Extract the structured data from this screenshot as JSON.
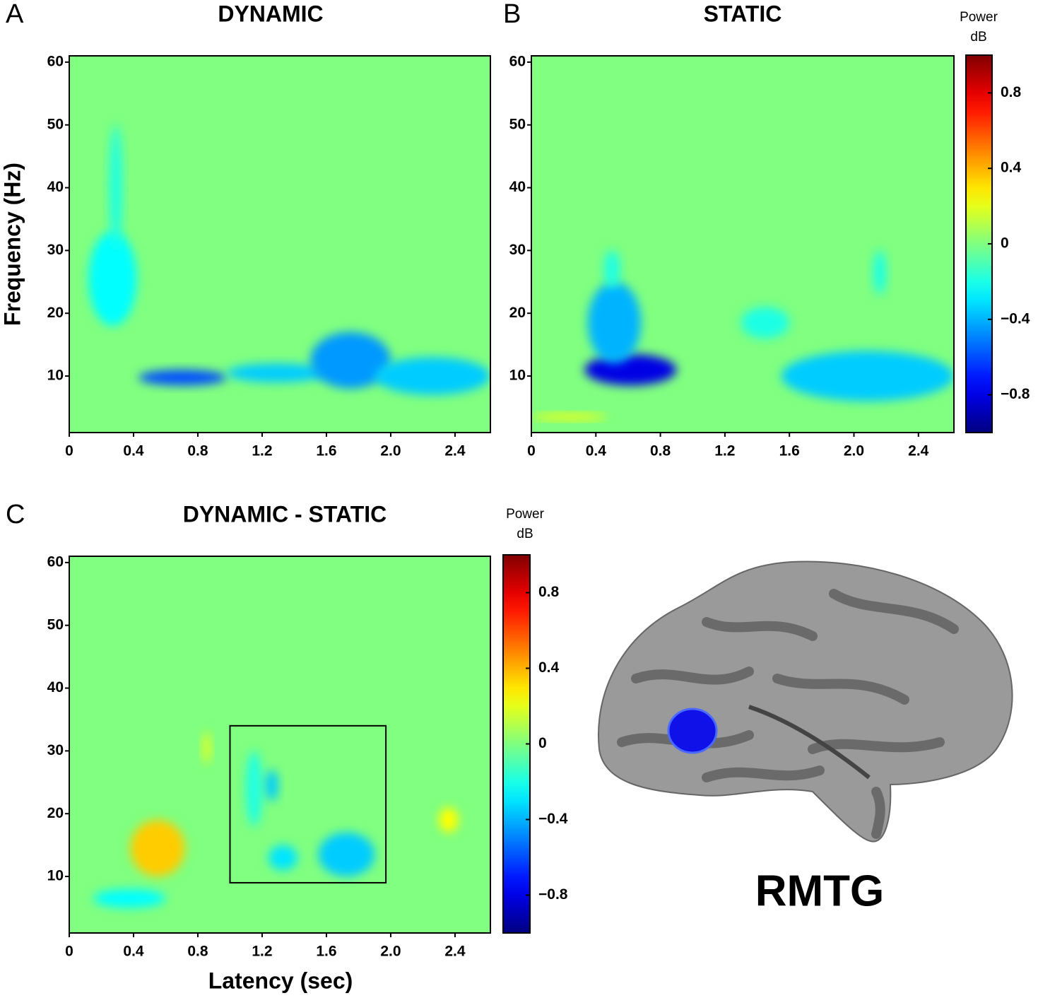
{
  "chart_data": [
    {
      "type": "heatmap",
      "panel": "A",
      "title": "DYNAMIC",
      "y_label": "Frequency (Hz)",
      "xlim": [
        0,
        2.62
      ],
      "ylim": [
        1,
        61
      ],
      "clim": [
        -1,
        1
      ],
      "colormap": "jet",
      "xticks": [
        0,
        0.4,
        0.8,
        1.2,
        1.6,
        {
          "value": 2,
          "label": "2.0"
        },
        2.4
      ],
      "yticks": [
        10,
        20,
        30,
        40,
        50,
        60
      ],
      "blobs": [
        {
          "x": [
            0.43,
            0.98
          ],
          "y": [
            8.5,
            11
          ],
          "value": -0.6
        },
        {
          "x": [
            0.98,
            1.6
          ],
          "y": [
            9,
            12
          ],
          "value": -0.35
        },
        {
          "x": [
            1.5,
            2.0
          ],
          "y": [
            8,
            17
          ],
          "value": -0.45
        },
        {
          "x": [
            1.9,
            2.62
          ],
          "y": [
            7,
            13
          ],
          "value": -0.35
        },
        {
          "x": [
            0.12,
            0.42
          ],
          "y": [
            18,
            33
          ],
          "value": -0.25
        },
        {
          "x": [
            0.25,
            0.33
          ],
          "y": [
            30,
            50
          ],
          "value": -0.2
        }
      ]
    },
    {
      "type": "heatmap",
      "panel": "B",
      "title": "STATIC",
      "colorbar_label": [
        "Power",
        "dB"
      ],
      "xlim": [
        0,
        2.62
      ],
      "ylim": [
        1,
        61
      ],
      "clim": [
        -1,
        1
      ],
      "colormap": "jet",
      "xticks": [
        0,
        0.4,
        0.8,
        1.2,
        1.6,
        {
          "value": 2,
          "label": "2.0"
        },
        2.4
      ],
      "yticks": [
        10,
        20,
        30,
        40,
        50,
        60
      ],
      "cticks": [
        0.8,
        0.4,
        0,
        {
          "value": -0.4,
          "label": "−0.4"
        },
        {
          "value": -0.8,
          "label": "−0.8"
        }
      ],
      "blobs": [
        {
          "x": [
            0.33,
            0.9
          ],
          "y": [
            8.5,
            13.5
          ],
          "value": -0.8
        },
        {
          "x": [
            0.35,
            0.68
          ],
          "y": [
            12,
            25
          ],
          "value": -0.4
        },
        {
          "x": [
            0.45,
            0.55
          ],
          "y": [
            24,
            30
          ],
          "value": -0.2
        },
        {
          "x": [
            1.55,
            2.62
          ],
          "y": [
            6,
            14
          ],
          "value": -0.35
        },
        {
          "x": [
            2.12,
            2.2
          ],
          "y": [
            23,
            30
          ],
          "value": -0.2
        },
        {
          "x": [
            1.3,
            1.6
          ],
          "y": [
            16,
            21
          ],
          "value": -0.2
        },
        {
          "x": [
            0,
            0.47
          ],
          "y": [
            3,
            4
          ],
          "value": 0.25
        }
      ]
    },
    {
      "type": "heatmap",
      "panel": "C",
      "title": "DYNAMIC - STATIC",
      "x_label": "Latency (sec)",
      "colorbar_label": [
        "Power",
        "dB"
      ],
      "xlim": [
        0,
        2.62
      ],
      "ylim": [
        1,
        61
      ],
      "clim": [
        -1,
        1
      ],
      "colormap": "jet",
      "xticks": [
        0,
        0.4,
        0.8,
        1.2,
        1.6,
        {
          "value": 2,
          "label": "2.0"
        },
        2.4
      ],
      "yticks": [
        10,
        20,
        30,
        40,
        50,
        60
      ],
      "cticks": [
        0.8,
        0.4,
        0,
        {
          "value": -0.4,
          "label": "−0.4"
        },
        {
          "value": -0.8,
          "label": "−0.8"
        }
      ],
      "box": {
        "x": [
          1.0,
          1.97
        ],
        "y": [
          9,
          34
        ]
      },
      "blobs": [
        {
          "x": [
            0.38,
            0.72
          ],
          "y": [
            10,
            19
          ],
          "value": 0.35
        },
        {
          "x": [
            0.15,
            0.6
          ],
          "y": [
            5,
            8
          ],
          "value": -0.25
        },
        {
          "x": [
            1.24,
            1.42
          ],
          "y": [
            11,
            15
          ],
          "value": -0.3
        },
        {
          "x": [
            1.55,
            1.9
          ],
          "y": [
            10,
            17
          ],
          "value": -0.35
        },
        {
          "x": [
            1.1,
            1.2
          ],
          "y": [
            18,
            30
          ],
          "value": -0.2
        },
        {
          "x": [
            1.22,
            1.3
          ],
          "y": [
            22,
            27
          ],
          "value": -0.35
        },
        {
          "x": [
            0.83,
            0.88
          ],
          "y": [
            28,
            33
          ],
          "value": 0.2
        },
        {
          "x": [
            2.3,
            2.42
          ],
          "y": [
            17,
            21
          ],
          "value": 0.25
        }
      ]
    }
  ],
  "brain": {
    "label": "RMTG"
  }
}
